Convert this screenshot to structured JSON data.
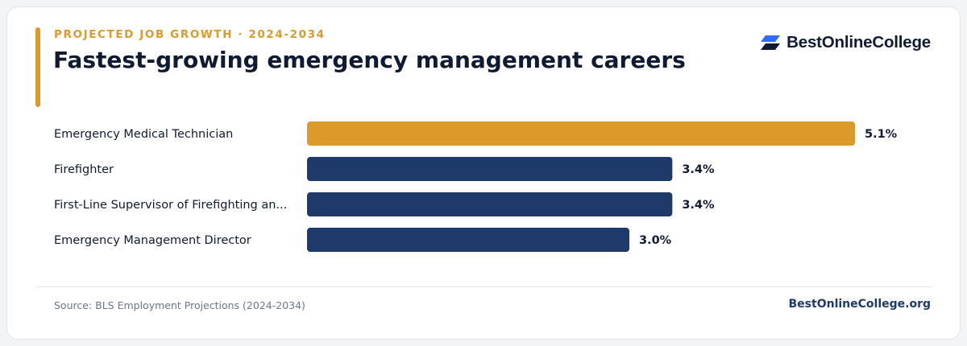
{
  "header": {
    "eyebrow": "PROJECTED JOB GROWTH · 2024-2034",
    "title": "Fastest-growing emergency management careers"
  },
  "brand": {
    "name": "BestOnlineCollege",
    "logo_icon": "parallelogram-stack-icon",
    "logo_colors": [
      "#2f6df6",
      "#0f1a33"
    ]
  },
  "footer": {
    "source": "Source: BLS Employment Projections (2024-2034)",
    "site": "BestOnlineCollege.org"
  },
  "colors": {
    "accent": "#db9a2a",
    "bar_default": "#1d3a6b",
    "bar_highlight": "#db9a2a",
    "text_dark": "#0f1a33"
  },
  "chart_data": {
    "type": "bar",
    "orientation": "horizontal",
    "categories": [
      "Emergency Medical Technician",
      "Firefighter",
      "First-Line Supervisor of Firefighting an...",
      "Emergency Management Director"
    ],
    "values": [
      5.1,
      3.4,
      3.4,
      3.0
    ],
    "value_labels": [
      "5.1%",
      "3.4%",
      "3.4%",
      "3.0%"
    ],
    "highlight_index": 0,
    "xlim": [
      0,
      5.1
    ],
    "grid": false,
    "legend": "none"
  }
}
